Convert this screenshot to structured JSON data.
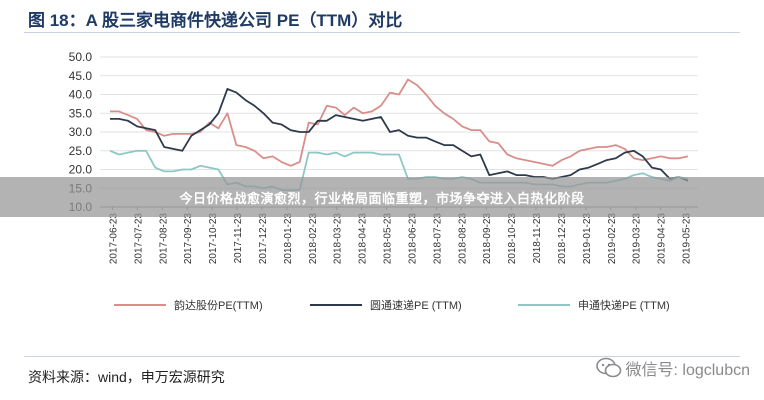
{
  "figure": {
    "title": "图 18：A 股三家电商件快递公司 PE（TTM）对比",
    "source": "资料来源：wind，申万宏源研究",
    "watermark": "微信号: logclubcn",
    "banner": "今日价格战愈演愈烈，行业格局面临重塑，市场争夺进入白热化阶段"
  },
  "chart_data": {
    "type": "line",
    "title": "",
    "xlabel": "",
    "ylabel": "",
    "ylim": [
      10,
      50
    ],
    "yticks": [
      "10.0",
      "15.0",
      "20.0",
      "25.0",
      "30.0",
      "35.0",
      "40.0",
      "45.0",
      "50.0"
    ],
    "x_tick_labels": [
      "2017-06-23",
      "2017-07-23",
      "2017-08-23",
      "2017-09-23",
      "2017-10-23",
      "2017-11-23",
      "2017-12-23",
      "2018-01-23",
      "2018-02-23",
      "2018-03-23",
      "2018-04-23",
      "2018-05-23",
      "2018-06-23",
      "2018-07-23",
      "2018-08-23",
      "2018-09-23",
      "2018-10-23",
      "2018-11-23",
      "2018-12-23",
      "2019-01-23",
      "2019-02-23",
      "2019-03-23",
      "2019-04-23",
      "2019-05-23"
    ],
    "grid": "horizontal",
    "legend_position": "bottom",
    "series": [
      {
        "name": "韵达股份PE(TTM)",
        "color": "#d98e8a",
        "values": [
          35.5,
          35.5,
          34.5,
          33.5,
          30.5,
          30.0,
          29.0,
          29.5,
          29.5,
          29.5,
          30.0,
          32.5,
          31.0,
          35.0,
          26.5,
          26.0,
          25.0,
          23.0,
          23.5,
          22.0,
          21.0,
          22.0,
          32.5,
          32.0,
          37.0,
          36.5,
          34.5,
          36.5,
          35.0,
          35.5,
          37.0,
          40.5,
          40.0,
          44.0,
          42.5,
          40.0,
          37.0,
          35.0,
          33.5,
          31.5,
          30.5,
          30.5,
          27.5,
          27.0,
          24.0,
          23.0,
          22.5,
          22.0,
          21.5,
          21.0,
          22.5,
          23.5,
          25.0,
          25.5,
          26.0,
          26.0,
          26.5,
          25.5,
          23.0,
          22.5,
          23.0,
          23.5,
          23.0,
          23.0,
          23.5
        ]
      },
      {
        "name": "圆通速递PE (TTM)",
        "color": "#2c3a4c",
        "values": [
          33.5,
          33.5,
          33.0,
          31.5,
          31.0,
          30.5,
          26.0,
          25.5,
          25.0,
          29.0,
          30.5,
          32.0,
          35.0,
          41.5,
          40.5,
          38.5,
          37.0,
          35.0,
          32.5,
          32.0,
          30.5,
          30.0,
          30.0,
          33.0,
          33.0,
          34.5,
          34.0,
          33.5,
          33.0,
          33.5,
          34.0,
          30.0,
          30.5,
          29.0,
          28.5,
          28.5,
          27.5,
          26.5,
          26.5,
          25.0,
          23.5,
          24.0,
          18.5,
          19.0,
          19.5,
          18.5,
          18.5,
          18.0,
          18.0,
          17.5,
          18.0,
          18.5,
          20.0,
          20.5,
          21.5,
          22.5,
          23.0,
          24.5,
          25.0,
          23.5,
          20.5,
          20.0,
          17.5,
          18.0,
          17.0
        ]
      },
      {
        "name": "申通快递PE (TTM)",
        "color": "#8fc6c6",
        "values": [
          25.0,
          24.0,
          24.5,
          25.0,
          25.0,
          20.5,
          19.5,
          19.5,
          20.0,
          20.0,
          21.0,
          20.5,
          20.0,
          16.0,
          16.5,
          15.5,
          15.5,
          15.0,
          15.5,
          14.5,
          14.5,
          14.5,
          24.5,
          24.5,
          24.0,
          24.5,
          23.5,
          24.5,
          24.5,
          24.5,
          24.0,
          24.0,
          24.0,
          17.5,
          17.5,
          18.0,
          18.0,
          17.5,
          17.5,
          18.0,
          17.5,
          16.5,
          16.5,
          16.5,
          16.5,
          16.5,
          16.5,
          16.0,
          16.0,
          16.0,
          15.5,
          15.5,
          16.0,
          16.5,
          16.5,
          16.5,
          17.0,
          17.5,
          18.5,
          19.0,
          18.0,
          17.5,
          17.0,
          18.0,
          17.5
        ]
      }
    ]
  }
}
